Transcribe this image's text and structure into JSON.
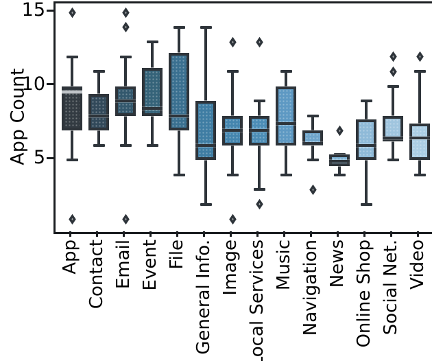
{
  "chart_data": {
    "type": "boxplot",
    "title": "",
    "xlabel": "",
    "ylabel": "App Count",
    "ylim": [
      0.13,
      15.62
    ],
    "yticks": [
      5,
      10,
      15
    ],
    "grid": false,
    "legend": "none",
    "background": "#ffffff",
    "axis_color": "#1b1e21",
    "element_line_color": "#2e343a",
    "categories": [
      "App",
      "Contact",
      "Email",
      "Event",
      "File",
      "General Info.",
      "Image",
      "Local Services",
      "Music",
      "Navigation",
      "News",
      "Online Shop",
      "Social Net.",
      "Video"
    ],
    "series": [
      {
        "category": "App",
        "whisker_low": 5,
        "q1": 7,
        "median": 9.6,
        "q3": 10,
        "whisker_high": 12,
        "outliers": [
          15,
          1
        ],
        "fill": "#333b42",
        "median_color": "#c0c5c9"
      },
      {
        "category": "Contact",
        "whisker_low": 6,
        "q1": 7,
        "median": 8,
        "q3": 9.5,
        "whisker_high": 11,
        "outliers": [],
        "fill": "#32495a"
      },
      {
        "category": "Email",
        "whisker_low": 6,
        "q1": 8,
        "median": 9,
        "q3": 10,
        "whisker_high": 12,
        "outliers": [
          15,
          14,
          1
        ],
        "fill": "#33586d"
      },
      {
        "category": "Event",
        "whisker_low": 6,
        "q1": 8,
        "median": 8.5,
        "q3": 11.25,
        "whisker_high": 13,
        "outliers": [],
        "fill": "#356379"
      },
      {
        "category": "File",
        "whisker_low": 4,
        "q1": 7,
        "median": 8,
        "q3": 12.25,
        "whisker_high": 14,
        "outliers": [],
        "fill": "#3a7090"
      },
      {
        "category": "General Info.",
        "whisker_low": 2,
        "q1": 5,
        "median": 6,
        "q3": 9,
        "whisker_high": 14,
        "outliers": [],
        "fill": "#3f7da3"
      },
      {
        "category": "Image",
        "whisker_low": 4,
        "q1": 6,
        "median": 7,
        "q3": 8,
        "whisker_high": 11,
        "outliers": [
          13,
          1
        ],
        "fill": "#4485ae"
      },
      {
        "category": "Local Services",
        "whisker_low": 3,
        "q1": 6,
        "median": 7,
        "q3": 8,
        "whisker_high": 9,
        "outliers": [
          13,
          2
        ],
        "fill": "#4c8db6"
      },
      {
        "category": "Music",
        "whisker_low": 4,
        "q1": 6,
        "median": 7.5,
        "q3": 10,
        "whisker_high": 11,
        "outliers": [],
        "fill": "#5e99c3"
      },
      {
        "category": "Navigation",
        "whisker_low": 5,
        "q1": 6,
        "median": 6.15,
        "q3": 7,
        "whisker_high": 8,
        "outliers": [
          3
        ],
        "fill": "#6fa5cb"
      },
      {
        "category": "News",
        "whisker_low": 4,
        "q1": 4.6,
        "median": 4.9,
        "q3": 5.4,
        "whisker_high": 5.4,
        "outliers": [
          7
        ],
        "fill": "#7db0d2"
      },
      {
        "category": "Online Shop",
        "whisker_low": 2,
        "q1": 5,
        "median": 6,
        "q3": 7.75,
        "whisker_high": 9,
        "outliers": [],
        "fill": "#8fbad8"
      },
      {
        "category": "Social Net.",
        "whisker_low": 5,
        "q1": 6.25,
        "median": 6.5,
        "q3": 8,
        "whisker_high": 10,
        "outliers": [
          12,
          11
        ],
        "fill": "#a0c5de"
      },
      {
        "category": "Video",
        "whisker_low": 4,
        "q1": 5,
        "median": 6.5,
        "q3": 7.5,
        "whisker_high": 11,
        "outliers": [
          12
        ],
        "fill": "#abcee5"
      }
    ]
  }
}
